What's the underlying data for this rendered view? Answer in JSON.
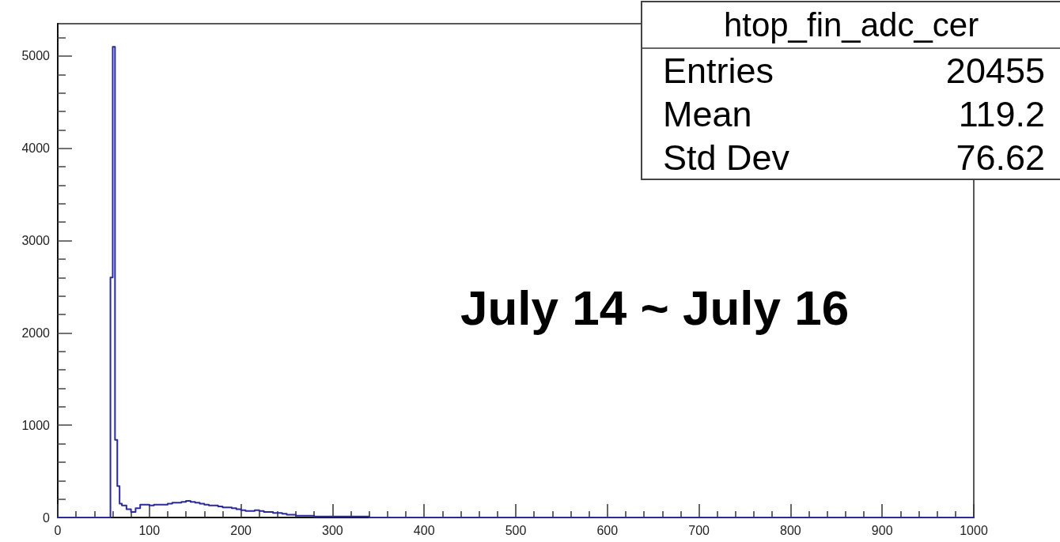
{
  "chart_data": {
    "type": "histogram",
    "title": "htop_fin_adc_cer",
    "annotations": [
      "Entries 20455",
      "Mean 119.2",
      "Std Dev 76.62",
      "July 14 ~ July 16"
    ],
    "bins": [
      0,
      57.5,
      60,
      62.5,
      65,
      67.5,
      70,
      75,
      80,
      85,
      90,
      100,
      105,
      120,
      125,
      135,
      140,
      145,
      150,
      155,
      160,
      165,
      175,
      180,
      190,
      195,
      200,
      205,
      215,
      220,
      225,
      235,
      245,
      250,
      260,
      280,
      340,
      1000
    ],
    "values": [
      0,
      2600,
      5100,
      840,
      340,
      150,
      130,
      90,
      60,
      100,
      140,
      130,
      140,
      150,
      160,
      170,
      180,
      170,
      160,
      150,
      140,
      130,
      120,
      110,
      100,
      90,
      80,
      70,
      80,
      70,
      60,
      50,
      40,
      30,
      20,
      10,
      0
    ],
    "color": "#2a2a9c",
    "xlim": [
      0,
      1000
    ],
    "xticks": [
      0,
      100,
      200,
      300,
      400,
      500,
      600,
      700,
      800,
      900,
      1000
    ],
    "ylim": [
      0,
      5350
    ],
    "yticks": [
      0,
      1000,
      2000,
      3000,
      4000,
      5000
    ],
    "grid": false
  }
}
